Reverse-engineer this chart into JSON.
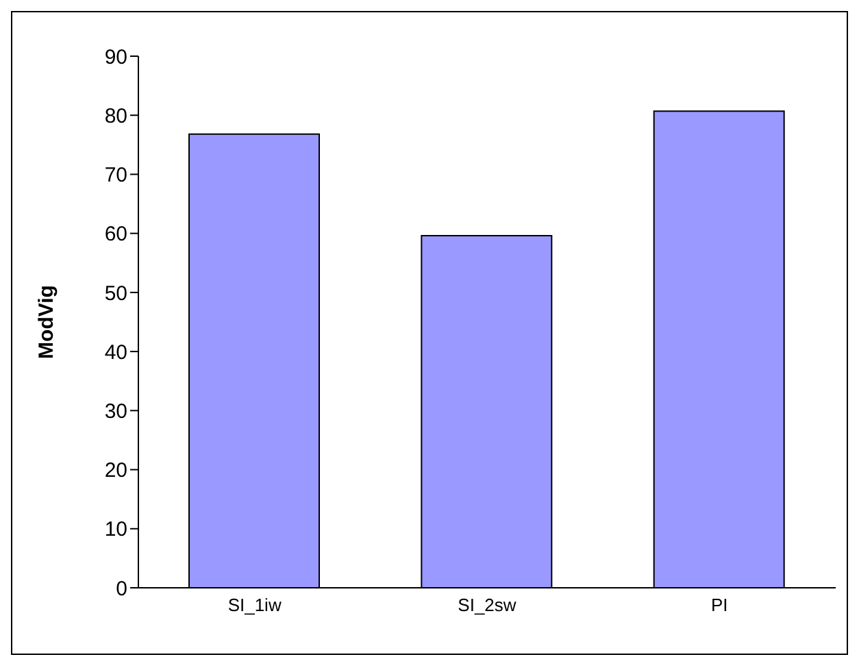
{
  "chart_data": {
    "type": "bar",
    "ylabel": "ModVig",
    "categories": [
      "SI_1iw",
      "SI_2sw",
      "PI"
    ],
    "values": [
      76.8,
      59.6,
      80.7
    ],
    "color": "#9999ff",
    "ylim": [
      0,
      90
    ],
    "yticks": [
      0,
      10,
      20,
      30,
      40,
      50,
      60,
      70,
      80,
      90
    ],
    "grid": false,
    "legend": false
  }
}
